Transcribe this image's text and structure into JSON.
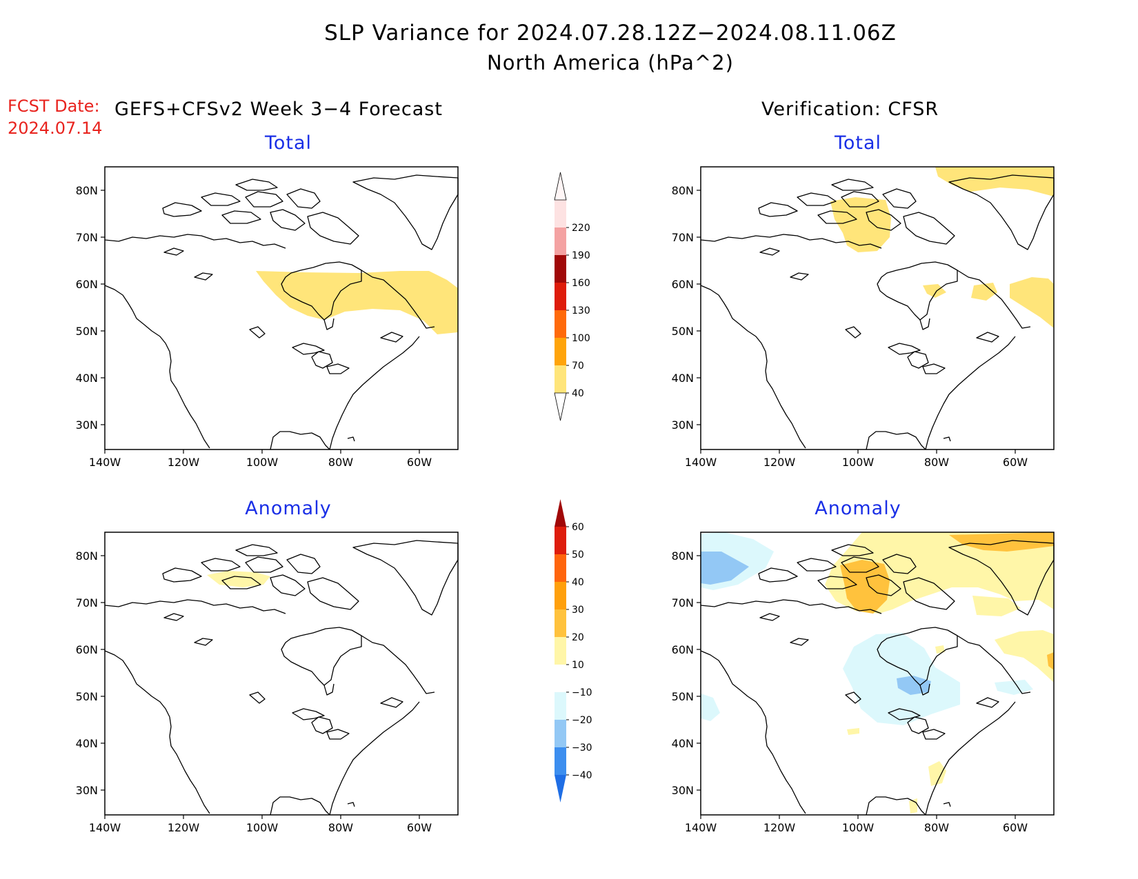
{
  "title": {
    "line1": "SLP Variance for 2024.07.28.12Z−2024.08.11.06Z",
    "line2": "North America (hPa^2)"
  },
  "fcst_date": {
    "label": "FCST Date:",
    "value": "2024.07.14"
  },
  "headers": {
    "left": "GEFS+CFSv2 Week 3−4 Forecast",
    "right": "Verification: CFSR"
  },
  "panels": [
    {
      "id": "forecast-total",
      "title": "Total"
    },
    {
      "id": "verification-total",
      "title": "Total"
    },
    {
      "id": "forecast-anomaly",
      "title": "Anomaly"
    },
    {
      "id": "verification-anomaly",
      "title": "Anomaly"
    }
  ],
  "axes": {
    "lat_labels": [
      "80N",
      "70N",
      "60N",
      "50N",
      "40N",
      "30N"
    ],
    "lon_labels": [
      "140W",
      "120W",
      "100W",
      "80W",
      "60W"
    ]
  },
  "colorbars": {
    "total": {
      "levels": [
        "40",
        "70",
        "100",
        "130",
        "160",
        "190",
        "220"
      ],
      "colors": [
        "#ffe57a",
        "#ffa40a",
        "#ff6a0a",
        "#de1c0a",
        "#a00808",
        "#f4a2a2",
        "#fde2e2"
      ]
    },
    "anomaly": {
      "levels": [
        "−40",
        "−30",
        "−20",
        "−10",
        "10",
        "20",
        "30",
        "40",
        "50",
        "60"
      ],
      "colors": [
        "#1f6ee5",
        "#3c8eef",
        "#93c8f5",
        "#dcf8fc",
        "#ffffff",
        "#fff6a8",
        "#ffc23d",
        "#ffa00c",
        "#ff650c",
        "#de1d0c",
        "#a10808"
      ]
    }
  }
}
